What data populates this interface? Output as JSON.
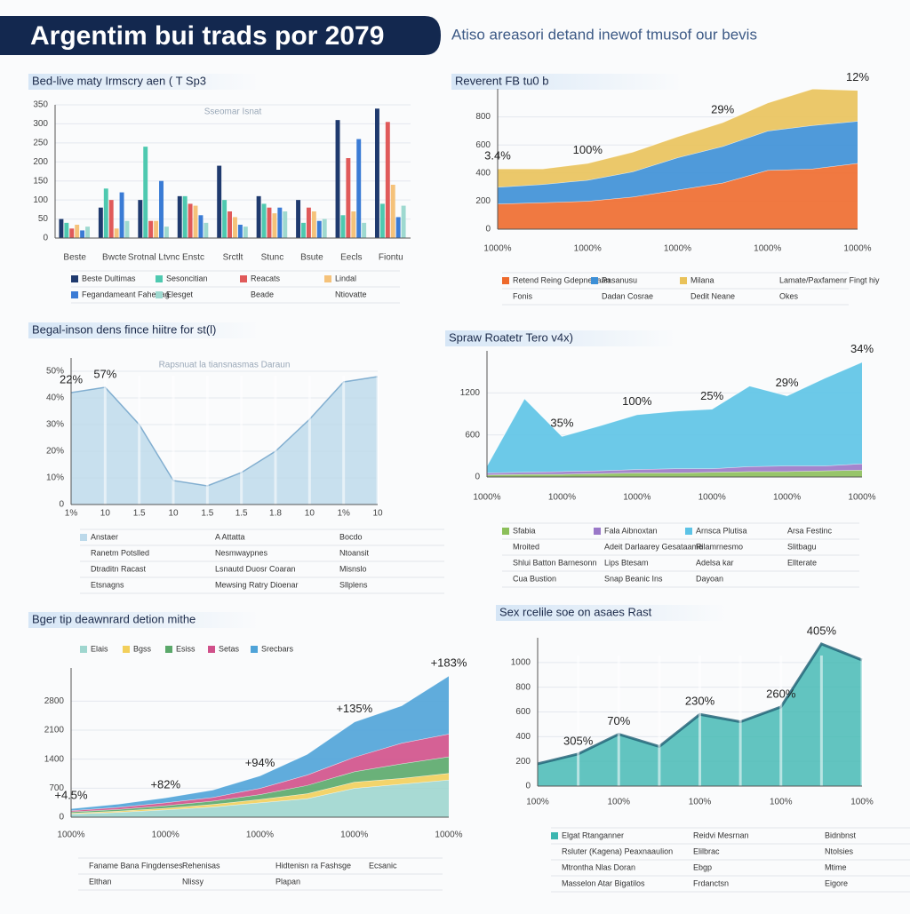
{
  "header": {
    "title": "Argentim bui trads por 2079",
    "subtitle": "Atiso areasori detand inewof tmusof our bevis"
  },
  "chart_data": [
    {
      "type": "bar",
      "title": "Bed-live maty Irmscry aen ( T Sp3",
      "subtitle": "Sseomar Isnat",
      "categories": [
        "Beste",
        "Bwcte",
        "Srotnal Ltvnc",
        "Enstc",
        "Srctlt",
        "Stunc",
        "Bsute",
        "Eecls",
        "Fiontu"
      ],
      "series": [
        {
          "name": "Beste Dultimas",
          "color": "#1f3a6e",
          "values": [
            50,
            80,
            100,
            110,
            190,
            110,
            100,
            310,
            340
          ]
        },
        {
          "name": "Sesoncitian",
          "color": "#4ec9b0",
          "values": [
            40,
            130,
            240,
            110,
            100,
            90,
            40,
            60,
            90
          ]
        },
        {
          "name": "Reacats",
          "color": "#e05a5a",
          "values": [
            25,
            100,
            45,
            90,
            70,
            80,
            80,
            210,
            305
          ]
        },
        {
          "name": "Lindal",
          "color": "#f5c27a",
          "values": [
            35,
            25,
            45,
            85,
            55,
            65,
            70,
            70,
            140
          ]
        },
        {
          "name": "Fegandameant Fahenag",
          "color": "#3a7bd5",
          "values": [
            20,
            120,
            150,
            60,
            35,
            80,
            45,
            260,
            55
          ]
        },
        {
          "name": "Elesget",
          "color": "#9ed9d0",
          "values": [
            30,
            45,
            30,
            40,
            30,
            70,
            50,
            40,
            85
          ]
        }
      ],
      "legend_notes": [
        "Beade",
        "Ntiovatte"
      ],
      "ylim": [
        0,
        350
      ],
      "yticks": [
        0,
        50,
        100,
        150,
        200,
        250,
        300,
        350
      ],
      "grid": true
    },
    {
      "type": "area",
      "stacked": true,
      "title": "Reverent FB tu0 b",
      "categories": [
        "1000%",
        null,
        "1000%",
        null,
        "1000%",
        null,
        "1000%",
        null,
        "1000%"
      ],
      "series": [
        {
          "name": "Retend Reing Gdepnenaan",
          "color": "#ee6a2c",
          "values": [
            180,
            190,
            200,
            230,
            280,
            330,
            420,
            430,
            470
          ]
        },
        {
          "name": "Pasanusu",
          "color": "#3c8fd6",
          "values": [
            120,
            130,
            150,
            180,
            230,
            260,
            280,
            310,
            300
          ]
        },
        {
          "name": "Milana",
          "color": "#e9c25a",
          "values": [
            130,
            110,
            120,
            140,
            150,
            170,
            200,
            260,
            220
          ]
        }
      ],
      "legend_notes": [
        "Lamate/Paxfamenr Fingt hiy",
        "Fonis",
        "Dadan Cosrae",
        "Dedit Neane",
        "Okes"
      ],
      "annotations": [
        {
          "label": "3.4%",
          "index": 0
        },
        {
          "label": "100%",
          "index": 2
        },
        {
          "label": "29%",
          "index": 5
        },
        {
          "label": "12%",
          "index": 8
        }
      ],
      "ylim": [
        0,
        1000
      ],
      "yticks": [
        0,
        200,
        400,
        600,
        800
      ],
      "grid": true
    },
    {
      "type": "area",
      "stacked": false,
      "title": "Begal-inson dens fince hiitre for st(l)",
      "subtitle": "Rapsnuat la tiansnasmas Daraun",
      "categories": [
        "1%",
        "10",
        "1.5",
        "10",
        "1.5",
        "1.5",
        "1.8",
        "10",
        "1%",
        "10"
      ],
      "series": [
        {
          "name": "Anstaer",
          "color": "#bcd9ea",
          "values": [
            42,
            44,
            30,
            9,
            7,
            12,
            20,
            32,
            46,
            48
          ]
        }
      ],
      "legend_notes": [
        "A Attatta",
        "Bocdo",
        "Ranetm Potslled",
        "Nesmwaypnes",
        "Ntoansit",
        "Dtraditn Racast",
        "Lsnautd Duosr Coaran",
        "Misnslo",
        "Etsnagns",
        "Mewsing Ratry Dioenar",
        "Sllplens"
      ],
      "annotations": [
        {
          "label": "22%",
          "index": 0
        },
        {
          "label": "57%",
          "index": 1
        }
      ],
      "ylim": [
        0,
        55
      ],
      "yticks": [
        0,
        {
          "value": 10,
          "label": "10%"
        },
        {
          "value": 20,
          "label": "20%"
        },
        {
          "value": 30,
          "label": "30%"
        },
        {
          "value": 40,
          "label": "40%"
        },
        {
          "value": 50,
          "label": "50%"
        }
      ],
      "grid": true
    },
    {
      "type": "area",
      "stacked": true,
      "title": "Spraw Roatetr Tero v4x)",
      "categories": [
        "1000%",
        null,
        "1000%",
        null,
        "1000%",
        null,
        "1000%",
        null,
        "1000%",
        null,
        "1000%"
      ],
      "series": [
        {
          "name": "Sfabia",
          "color": "#8cbf5a",
          "values": [
            30,
            40,
            40,
            50,
            60,
            60,
            70,
            80,
            80,
            90,
            100
          ]
        },
        {
          "name": "Fala Aibnoxtan",
          "color": "#9a78c8",
          "values": [
            30,
            30,
            40,
            40,
            50,
            60,
            50,
            70,
            80,
            70,
            90
          ]
        },
        {
          "name": "Arnsca Plutisa",
          "color": "#5cc3e6",
          "values": [
            100,
            1050,
            500,
            640,
            780,
            820,
            850,
            1150,
            1000,
            1250,
            1450
          ]
        }
      ],
      "legend_notes": [
        "Arsa Festinc",
        "Mroited",
        "Adeit Darlaarey Gesataame",
        "Rilamrnesmo",
        "Slitbagu",
        "Shlui Batton Barnesonn",
        "Lips Btesam",
        "Adelsa kar",
        "Ellterate",
        "Cua Bustion",
        "Snap Beanic Ins",
        "Dayoan"
      ],
      "annotations": [
        {
          "label": "35%",
          "index": 2
        },
        {
          "label": "100%",
          "index": 4
        },
        {
          "label": "25%",
          "index": 6
        },
        {
          "label": "29%",
          "index": 8
        },
        {
          "label": "34%",
          "index": 10
        }
      ],
      "ylim": [
        0,
        1800
      ],
      "yticks": [
        0,
        600,
        1200
      ],
      "grid": true
    },
    {
      "type": "area",
      "stacked": true,
      "title": "Bger tip deawnrard detion mithe",
      "legend_position": "top",
      "categories": [
        "1000%",
        null,
        "1000%",
        null,
        "1000%",
        null,
        "1000%",
        null,
        "1000%"
      ],
      "series": [
        {
          "name": "Elais",
          "color": "#9fd6cf",
          "values": [
            80,
            120,
            180,
            250,
            350,
            450,
            700,
            800,
            900
          ]
        },
        {
          "name": "Bgss",
          "color": "#f2cf5b",
          "values": [
            20,
            30,
            40,
            60,
            80,
            120,
            150,
            140,
            160
          ]
        },
        {
          "name": "Esiss",
          "color": "#5aa86a",
          "values": [
            30,
            40,
            60,
            80,
            120,
            200,
            250,
            350,
            400
          ]
        },
        {
          "name": "Setas",
          "color": "#d0508a",
          "values": [
            30,
            50,
            70,
            90,
            150,
            250,
            350,
            500,
            550
          ]
        },
        {
          "name": "Srecbars",
          "color": "#4fa3d8",
          "values": [
            50,
            80,
            120,
            180,
            300,
            500,
            850,
            900,
            1400
          ]
        }
      ],
      "legend_notes": [
        "Faname Bana Fingdenses",
        "Rehenisas",
        "Hidtenisn ra Fashsge",
        "Ecsanic",
        "Elthan",
        "Nlissy",
        "Plapan"
      ],
      "annotations": [
        {
          "label": "+4.5%",
          "index": 0
        },
        {
          "label": "+82%",
          "index": 2
        },
        {
          "label": "+94%",
          "index": 4
        },
        {
          "label": "+135%",
          "index": 6
        },
        {
          "label": "+183%",
          "index": 8
        }
      ],
      "ylim": [
        0,
        3600
      ],
      "yticks": [
        0,
        700,
        1400,
        2100,
        2800
      ],
      "grid": true
    },
    {
      "type": "area",
      "stacked": false,
      "title": "Sex rcelile soe on asaes Rast",
      "categories": [
        "100%",
        null,
        "100%",
        null,
        "100%",
        null,
        "100%",
        null,
        "100%"
      ],
      "series": [
        {
          "name": "Elgat Rtanganner",
          "color": "#3cb6b0",
          "values": [
            180,
            260,
            420,
            320,
            580,
            520,
            640,
            1150,
            1020
          ]
        }
      ],
      "legend_notes": [
        "Reidvi Mesrnan",
        "Bidnbnst",
        "Rsluter (Kagena) Peaxnaaulion",
        "Elilbrac",
        "Ntolsies",
        "Mtrontha Nlas Doran",
        "Ebgp",
        "Mtime",
        "Masselon Atar Bigatilos",
        "Frdanctsn",
        "Eigore"
      ],
      "annotations": [
        {
          "label": "305%",
          "index": 1
        },
        {
          "label": "70%",
          "index": 2
        },
        {
          "label": "230%",
          "index": 4
        },
        {
          "label": "260%",
          "index": 6
        },
        {
          "label": "405%",
          "index": 7
        }
      ],
      "ylim": [
        0,
        1200
      ],
      "yticks": [
        0,
        200,
        400,
        600,
        800,
        1000
      ],
      "grid": true
    }
  ]
}
